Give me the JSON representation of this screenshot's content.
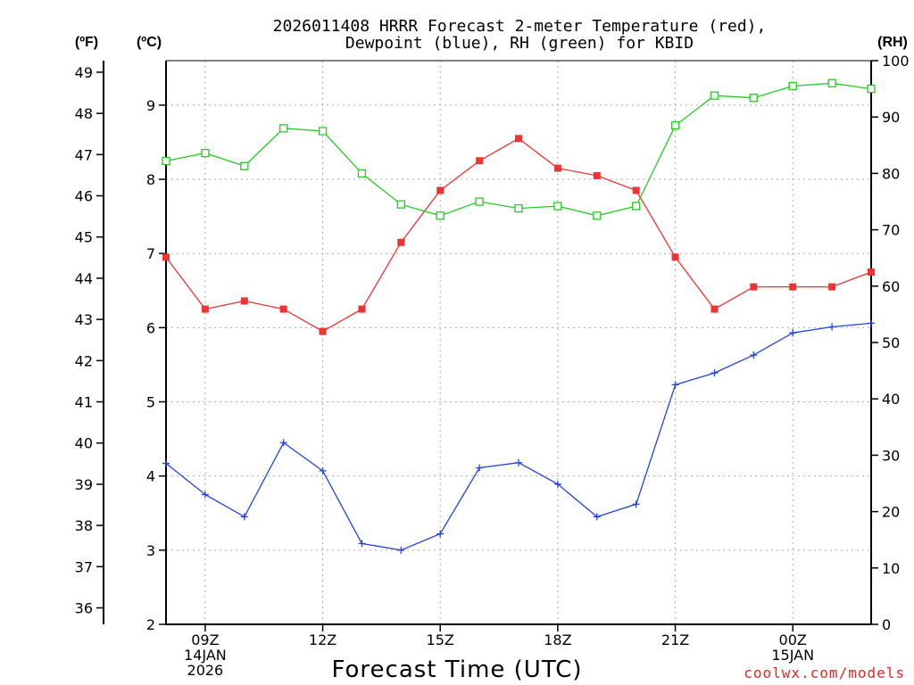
{
  "chart_data": {
    "type": "line",
    "title_line1": "2026011408 HRRR Forecast 2-meter Temperature (red),",
    "title_line2": "Dewpoint (blue), RH (green) for KBID",
    "xlabel": "Forecast Time (UTC)",
    "credit": "coolwx.com/models",
    "units": {
      "f": "(ºF)",
      "c": "(ºC)",
      "rh": "(RH)"
    },
    "x_hours": [
      8,
      9,
      10,
      11,
      12,
      13,
      14,
      15,
      16,
      17,
      18,
      19,
      20,
      21,
      22,
      23,
      24,
      25,
      26
    ],
    "xlim": [
      8,
      26
    ],
    "x_ticks": [
      {
        "hour": 9,
        "lines": [
          "09Z",
          "14JAN",
          "2026"
        ]
      },
      {
        "hour": 12,
        "lines": [
          "12Z"
        ]
      },
      {
        "hour": 15,
        "lines": [
          "15Z"
        ]
      },
      {
        "hour": 18,
        "lines": [
          "18Z"
        ]
      },
      {
        "hour": 21,
        "lines": [
          "21Z"
        ]
      },
      {
        "hour": 24,
        "lines": [
          "00Z",
          "15JAN"
        ]
      }
    ],
    "y_celsius": {
      "lim": [
        2,
        9.6
      ],
      "ticks": [
        2,
        3,
        4,
        5,
        6,
        7,
        8,
        9
      ]
    },
    "y_fahrenheit": {
      "ticks": [
        36,
        37,
        38,
        39,
        40,
        41,
        42,
        43,
        44,
        45,
        46,
        47,
        48,
        49
      ]
    },
    "y_rh": {
      "lim": [
        0,
        100
      ],
      "ticks": [
        0,
        10,
        20,
        30,
        40,
        50,
        60,
        70,
        80,
        90,
        100
      ]
    },
    "series": [
      {
        "name": "Temperature",
        "axis": "c",
        "color": "#ee3333",
        "marker": "filled-square",
        "values": [
          6.95,
          6.25,
          6.36,
          6.25,
          5.95,
          6.25,
          7.15,
          7.85,
          8.25,
          8.55,
          8.15,
          8.05,
          7.85,
          6.95,
          6.25,
          6.55,
          6.55,
          6.55,
          6.75
        ]
      },
      {
        "name": "Dewpoint",
        "axis": "c",
        "color": "#2244dd",
        "marker": "plus",
        "values": [
          4.17,
          3.75,
          3.45,
          4.45,
          4.07,
          3.09,
          3.0,
          3.22,
          4.11,
          4.18,
          3.89,
          3.45,
          3.62,
          5.23,
          5.39,
          5.63,
          5.93,
          6.01,
          6.06
        ]
      },
      {
        "name": "RH",
        "axis": "rh",
        "color": "#22cc22",
        "marker": "open-square",
        "values": [
          82.2,
          83.6,
          81.3,
          88.0,
          87.5,
          80.0,
          74.5,
          72.5,
          75.0,
          73.8,
          74.2,
          72.5,
          74.2,
          88.5,
          93.8,
          93.4,
          95.5,
          96.0,
          95.0
        ]
      }
    ]
  }
}
